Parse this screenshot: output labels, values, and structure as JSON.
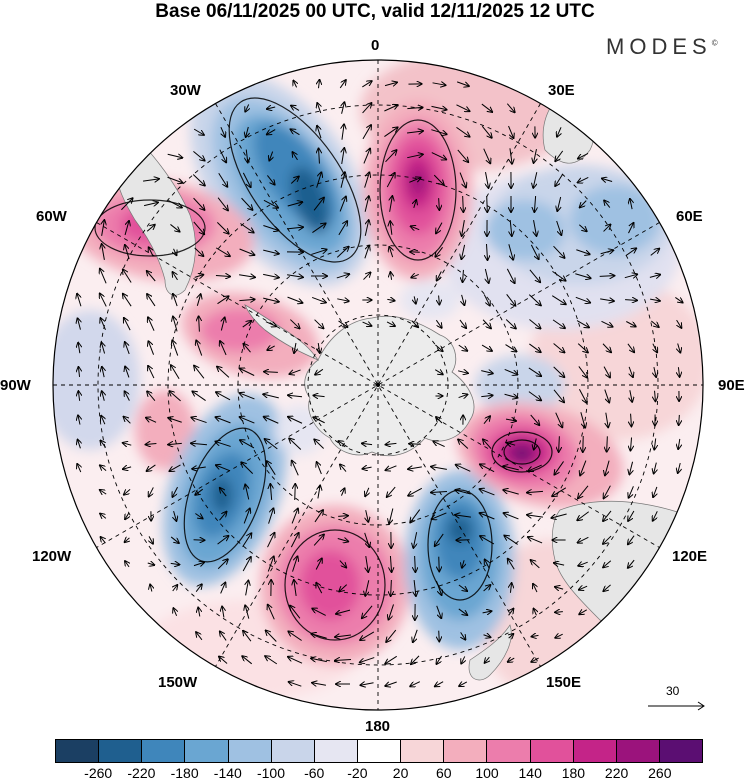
{
  "title": "Base 06/11/2025 00 UTC, valid 12/11/2025 12 UTC",
  "brand": "MODES",
  "brand_mark": "©",
  "longitude_labels": {
    "top": "0",
    "top_right": "30E",
    "right_upper": "60E",
    "right": "90E",
    "right_lower": "120E",
    "bottom_right": "150E",
    "bottom": "180",
    "bottom_left": "150W",
    "left_lower": "120W",
    "left": "90W",
    "left_upper": "60W",
    "top_left": "30W"
  },
  "vector_scale_label": "30",
  "colorbar": {
    "colors": [
      "#1b3f63",
      "#1f5f8f",
      "#3f86bb",
      "#6aa6d2",
      "#9fc1e2",
      "#c9d5ea",
      "#e6e6f2",
      "#ffffff",
      "#f7d6d8",
      "#f3aebd",
      "#ec7dac",
      "#e1519b",
      "#c42488",
      "#9b137c",
      "#5b0e72"
    ],
    "tick_labels": [
      "-260",
      "-220",
      "-180",
      "-140",
      "-100",
      "-60",
      "-20",
      "20",
      "60",
      "100",
      "140",
      "180",
      "220",
      "260"
    ]
  },
  "colors": {
    "land": "#e8e8e8",
    "antarctica": "#ececec"
  }
}
